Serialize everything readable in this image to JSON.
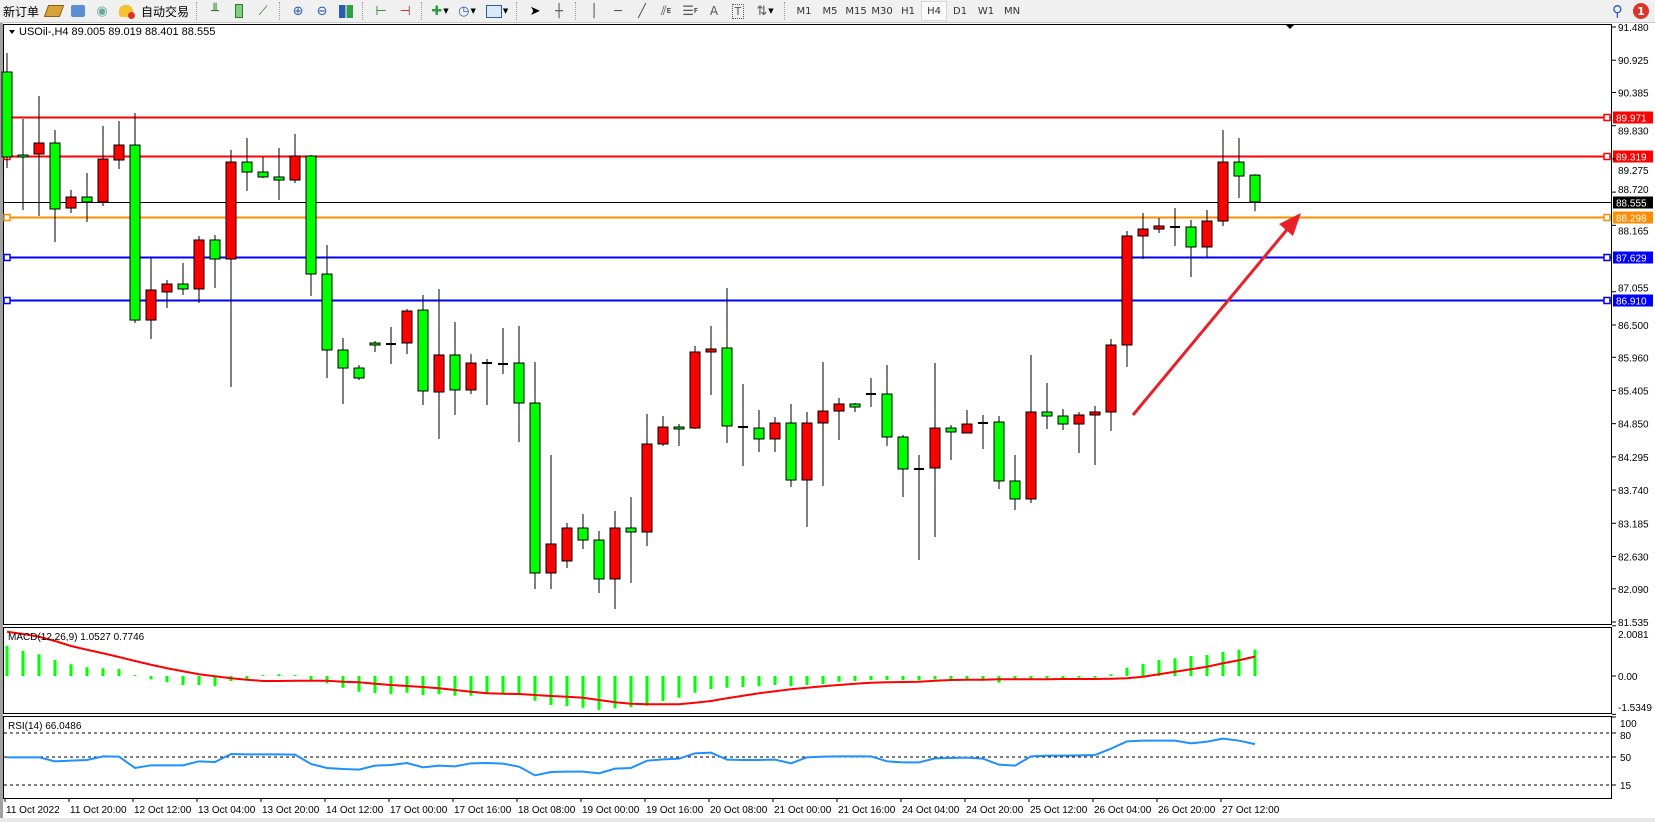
{
  "toolbar": {
    "new_order_label": "新订单",
    "auto_trading_label": "自动交易",
    "icons": [
      "new-order",
      "metaeditor-book",
      "navigator-terminal",
      "signals-antenna",
      "auto-trading",
      "bar-chart",
      "candlestick-chart",
      "line-chart",
      "zoom-in",
      "zoom-out",
      "tile-windows",
      "chart-shift",
      "auto-scroll",
      "indicators",
      "periods-clock",
      "templates",
      "cursor",
      "crosshair",
      "vertical-line",
      "horizontal-line",
      "trend-line",
      "equidistant-channel",
      "fibonacci",
      "text",
      "text-label",
      "arrows"
    ],
    "equidistant_channel_sub": "E",
    "fibonacci_sub": "F",
    "text_glyph": "A",
    "text_label_glyph": "T",
    "timeframes": [
      "M1",
      "M5",
      "M15",
      "M30",
      "H1",
      "H4",
      "D1",
      "W1",
      "MN"
    ],
    "active_timeframe": "H4",
    "notification_count": "1"
  },
  "chart_header": {
    "symbol_line": "USOil-,H4  89.005 89.019 88.401 88.555"
  },
  "colors": {
    "bull_candle": "#ff0000",
    "bear_candle": "#00ff00",
    "resistance_line": "#ff0000",
    "bid_line": "#000000",
    "orange_line": "#ff8c00",
    "support_line": "#0000ff",
    "macd_histogram": "#00ff00",
    "macd_signal": "#ff0000",
    "rsi_line": "#1e90ff",
    "arrow": "#e8202a"
  },
  "chart_data": {
    "type": "candlestick",
    "symbol": "USOil-",
    "timeframe": "H4",
    "ohlc_fields": [
      "open",
      "high",
      "low",
      "close"
    ],
    "ylim": [
      81.535,
      91.48
    ],
    "y_ticks": [
      "91.480",
      "90.925",
      "90.385",
      "89.830",
      "89.275",
      "88.720",
      "88.165",
      "87.055",
      "86.500",
      "85.960",
      "85.405",
      "84.850",
      "84.295",
      "83.740",
      "83.185",
      "82.630",
      "82.090",
      "81.535"
    ],
    "x_tick_labels": [
      "11 Oct 2022",
      "11 Oct 20:00",
      "12 Oct 12:00",
      "13 Oct 04:00",
      "13 Oct 20:00",
      "14 Oct 12:00",
      "17 Oct 00:00",
      "17 Oct 16:00",
      "18 Oct 08:00",
      "19 Oct 00:00",
      "19 Oct 16:00",
      "20 Oct 08:00",
      "21 Oct 00:00",
      "21 Oct 16:00",
      "24 Oct 04:00",
      "24 Oct 20:00",
      "25 Oct 12:00",
      "26 Oct 04:00",
      "26 Oct 20:00",
      "27 Oct 12:00"
    ],
    "candles": [
      [
        90.728,
        91.045,
        89.123,
        89.307
      ],
      [
        89.34,
        89.942,
        88.421,
        89.324
      ],
      [
        89.357,
        90.326,
        88.321,
        89.541
      ],
      [
        89.541,
        89.758,
        87.886,
        88.438
      ],
      [
        88.454,
        88.755,
        88.371,
        88.638
      ],
      [
        88.638,
        89.039,
        88.22,
        88.555
      ],
      [
        88.555,
        89.825,
        88.488,
        89.273
      ],
      [
        89.257,
        89.909,
        89.106,
        89.507
      ],
      [
        89.507,
        90.042,
        86.532,
        86.582
      ],
      [
        86.582,
        87.619,
        86.265,
        87.084
      ],
      [
        87.051,
        87.251,
        86.783,
        87.184
      ],
      [
        87.184,
        87.535,
        87.0,
        87.101
      ],
      [
        87.101,
        87.987,
        86.867,
        87.92
      ],
      [
        87.92,
        88.003,
        87.117,
        87.602
      ],
      [
        87.602,
        89.424,
        85.463,
        89.223
      ],
      [
        89.223,
        89.624,
        88.739,
        89.056
      ],
      [
        89.056,
        89.307,
        88.956,
        88.973
      ],
      [
        88.973,
        89.457,
        88.588,
        88.922
      ],
      [
        88.922,
        89.691,
        88.872,
        89.324
      ],
      [
        89.324,
        89.34,
        86.984,
        87.351
      ],
      [
        87.351,
        87.836,
        85.613,
        86.081
      ],
      [
        86.081,
        86.282,
        85.179,
        85.78
      ],
      [
        85.78,
        85.83,
        85.58,
        85.613
      ],
      [
        86.198,
        86.232,
        86.048,
        86.165
      ],
      [
        86.181,
        86.465,
        85.847,
        86.181
      ],
      [
        86.198,
        86.766,
        86.014,
        86.733
      ],
      [
        86.749,
        87.0,
        85.162,
        85.396
      ],
      [
        85.379,
        87.101,
        84.594,
        85.998
      ],
      [
        85.998,
        86.549,
        84.995,
        85.413
      ],
      [
        85.413,
        86.014,
        85.346,
        85.864
      ],
      [
        85.864,
        85.931,
        85.162,
        85.864
      ],
      [
        85.847,
        86.449,
        85.68,
        85.847
      ],
      [
        85.864,
        86.482,
        84.543,
        85.195
      ],
      [
        85.195,
        85.881,
        82.087,
        82.354
      ],
      [
        82.354,
        84.326,
        82.087,
        82.839
      ],
      [
        82.555,
        83.19,
        82.437,
        83.106
      ],
      [
        83.106,
        83.34,
        82.755,
        82.905
      ],
      [
        82.905,
        83.056,
        82.02,
        82.254
      ],
      [
        82.254,
        83.39,
        81.752,
        83.106
      ],
      [
        83.106,
        83.624,
        82.187,
        83.039
      ],
      [
        83.039,
        85.011,
        82.805,
        84.51
      ],
      [
        84.51,
        84.978,
        84.477,
        84.794
      ],
      [
        84.794,
        84.844,
        84.477,
        84.777
      ],
      [
        84.777,
        86.148,
        84.761,
        86.048
      ],
      [
        86.048,
        86.482,
        85.329,
        86.098
      ],
      [
        86.115,
        87.117,
        84.527,
        84.811
      ],
      [
        84.794,
        85.513,
        84.142,
        84.794
      ],
      [
        84.777,
        85.078,
        84.376,
        84.594
      ],
      [
        84.594,
        84.961,
        84.376,
        84.861
      ],
      [
        84.861,
        85.179,
        83.791,
        83.908
      ],
      [
        83.908,
        85.045,
        83.123,
        84.861
      ],
      [
        84.861,
        85.881,
        83.808,
        85.061
      ],
      [
        85.061,
        85.279,
        84.577,
        85.179
      ],
      [
        85.179,
        85.195,
        85.045,
        85.128
      ],
      [
        85.346,
        85.613,
        85.128,
        85.346
      ],
      [
        85.346,
        85.83,
        84.477,
        84.627
      ],
      [
        84.627,
        84.66,
        83.624,
        84.092
      ],
      [
        84.092,
        84.326,
        82.571,
        84.092
      ],
      [
        84.109,
        85.864,
        82.956,
        84.777
      ],
      [
        84.777,
        84.828,
        84.242,
        84.711
      ],
      [
        84.694,
        85.078,
        84.694,
        84.844
      ],
      [
        84.861,
        84.995,
        84.426,
        84.861
      ],
      [
        84.878,
        84.978,
        83.758,
        83.892
      ],
      [
        83.892,
        84.326,
        83.407,
        83.591
      ],
      [
        83.591,
        85.998,
        83.524,
        85.045
      ],
      [
        85.045,
        85.53,
        84.761,
        84.978
      ],
      [
        84.978,
        85.095,
        84.744,
        84.844
      ],
      [
        84.844,
        85.045,
        84.359,
        84.995
      ],
      [
        84.995,
        85.145,
        84.159,
        85.045
      ],
      [
        85.045,
        86.265,
        84.727,
        86.165
      ],
      [
        86.165,
        88.07,
        85.797,
        87.987
      ],
      [
        87.987,
        88.371,
        87.602,
        88.103
      ],
      [
        88.103,
        88.287,
        88.037,
        88.154
      ],
      [
        88.137,
        88.454,
        87.819,
        88.137
      ],
      [
        88.137,
        88.254,
        87.301,
        87.803
      ],
      [
        87.803,
        88.421,
        87.635,
        88.237
      ],
      [
        88.237,
        89.758,
        88.154,
        89.223
      ],
      [
        89.223,
        89.624,
        88.622,
        88.989
      ],
      [
        89.005,
        89.019,
        88.401,
        88.555
      ]
    ],
    "horizontal_lines": [
      {
        "price": "89.971",
        "color": "#ff0000",
        "label_color": "#ffffff"
      },
      {
        "price": "89.319",
        "color": "#ff0000",
        "label_color": "#ffffff"
      },
      {
        "price": "88.555",
        "color": "#000000",
        "label_color": "#ffffff",
        "bid": true
      },
      {
        "price": "88.298",
        "color": "#ff8c00",
        "label_color": "#ffffff"
      },
      {
        "price": "87.629",
        "color": "#0000ff",
        "label_color": "#ffffff"
      },
      {
        "price": "86.910",
        "color": "#0000ff",
        "label_color": "#ffffff"
      }
    ],
    "annotation_arrow": {
      "from_price": 84.9,
      "to_price": 88.3,
      "direction": "up",
      "color": "#e8202a"
    },
    "macd": {
      "label": "MACD(12,26,9) 1.0527 0.7746",
      "ylim": [
        -1.5349,
        2.0081
      ],
      "y_ticks": [
        "2.0081",
        "0.00",
        "-1.5349"
      ],
      "histogram": [
        1.21,
        1.0,
        0.87,
        0.64,
        0.47,
        0.35,
        0.31,
        0.28,
        0.04,
        -0.13,
        -0.25,
        -0.36,
        -0.36,
        -0.4,
        -0.2,
        -0.13,
        0.04,
        0.07,
        0.04,
        -0.16,
        -0.29,
        -0.47,
        -0.63,
        -0.68,
        -0.72,
        -0.67,
        -0.76,
        -0.73,
        -0.79,
        -0.79,
        -0.73,
        -0.69,
        -0.76,
        -0.99,
        -1.16,
        -1.2,
        -1.27,
        -1.36,
        -1.29,
        -1.25,
        -1.19,
        -1.0,
        -0.87,
        -0.67,
        -0.52,
        -0.47,
        -0.44,
        -0.41,
        -0.36,
        -0.4,
        -0.36,
        -0.32,
        -0.23,
        -0.2,
        -0.16,
        -0.16,
        -0.17,
        -0.17,
        -0.13,
        -0.13,
        -0.12,
        -0.12,
        -0.27,
        -0.13,
        -0.12,
        -0.09,
        -0.09,
        -0.07,
        -0.07,
        0.07,
        0.33,
        0.48,
        0.64,
        0.71,
        0.8,
        0.84,
        0.96,
        1.05,
        1.0527
      ],
      "signal": [
        1.77,
        1.68,
        1.57,
        1.4,
        1.2,
        1.05,
        0.91,
        0.76,
        0.6,
        0.45,
        0.31,
        0.19,
        0.07,
        -0.01,
        -0.09,
        -0.15,
        -0.2,
        -0.2,
        -0.19,
        -0.19,
        -0.19,
        -0.23,
        -0.25,
        -0.31,
        -0.36,
        -0.4,
        -0.44,
        -0.49,
        -0.56,
        -0.63,
        -0.69,
        -0.71,
        -0.72,
        -0.76,
        -0.8,
        -0.83,
        -0.87,
        -0.96,
        -1.05,
        -1.11,
        -1.13,
        -1.13,
        -1.13,
        -1.07,
        -1.0,
        -0.89,
        -0.79,
        -0.69,
        -0.61,
        -0.53,
        -0.47,
        -0.41,
        -0.36,
        -0.31,
        -0.27,
        -0.25,
        -0.24,
        -0.23,
        -0.19,
        -0.16,
        -0.15,
        -0.15,
        -0.13,
        -0.13,
        -0.13,
        -0.13,
        -0.12,
        -0.12,
        -0.12,
        -0.11,
        -0.09,
        -0.03,
        0.07,
        0.17,
        0.27,
        0.37,
        0.51,
        0.63,
        0.7746
      ]
    },
    "rsi": {
      "label": "RSI(14) 66.0486",
      "ylim": [
        0,
        100
      ],
      "y_ticks": [
        "100",
        "80",
        "50",
        "15"
      ],
      "levels": [
        80,
        50,
        15
      ],
      "values": [
        49.6,
        49.6,
        49.6,
        44.6,
        45.4,
        46.3,
        50.8,
        50.4,
        36.3,
        39.6,
        39.6,
        39.6,
        44.6,
        43.8,
        53.8,
        53.3,
        53.3,
        53.3,
        52.9,
        41.3,
        36.3,
        35.0,
        34.2,
        39.2,
        40.0,
        42.5,
        37.1,
        39.2,
        38.3,
        42.1,
        42.5,
        41.7,
        37.9,
        27.1,
        31.3,
        31.7,
        31.7,
        29.6,
        35.4,
        36.3,
        45.4,
        47.1,
        47.9,
        54.6,
        55.4,
        46.7,
        46.3,
        46.3,
        46.7,
        42.1,
        49.6,
        50.4,
        50.8,
        50.8,
        50.8,
        44.6,
        43.3,
        43.3,
        48.3,
        48.8,
        49.2,
        47.9,
        40.4,
        39.2,
        50.8,
        51.7,
        51.7,
        52.1,
        52.5,
        60.4,
        69.6,
        70.4,
        70.4,
        70.4,
        67.1,
        69.2,
        72.9,
        70.4,
        66.0486
      ]
    }
  }
}
